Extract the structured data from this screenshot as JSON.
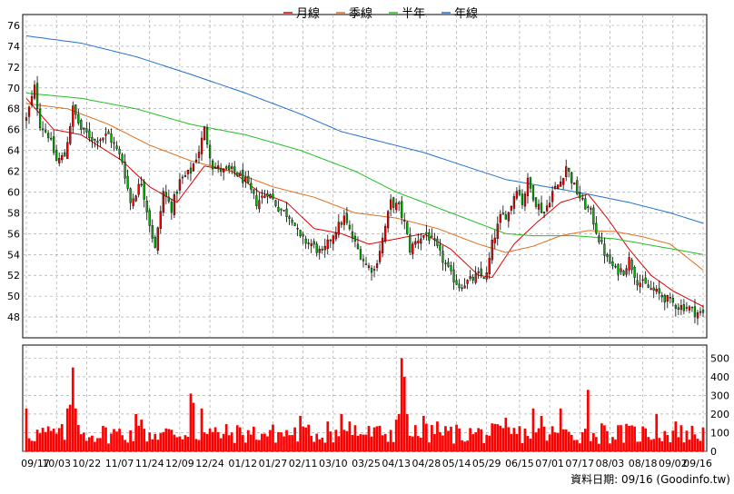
{
  "legend": [
    {
      "name": "月線",
      "color": "#e00000"
    },
    {
      "name": "季線",
      "color": "#e07020"
    },
    {
      "name": "半年",
      "color": "#20c020"
    },
    {
      "name": "年線",
      "color": "#2070d0"
    }
  ],
  "colors": {
    "up": "#ff0000",
    "down": "#00b000",
    "volume": "#ff0000",
    "grid": "#999999",
    "frame": "#000000"
  },
  "footer": "資料日期: 09/16  (Goodinfo.tw)",
  "chart_data": [
    {
      "type": "candlestick",
      "ylim": [
        46,
        76
      ],
      "yticks": [
        48,
        50,
        52,
        54,
        56,
        58,
        60,
        62,
        64,
        66,
        68,
        70,
        72,
        74,
        76
      ],
      "xticks": [
        "09/17",
        "10/03",
        "10/22",
        "11/07",
        "11/24",
        "12/09",
        "12/24",
        "01/12",
        "01/27",
        "02/11",
        "03/10",
        "03/25",
        "04/13",
        "04/28",
        "05/14",
        "05/29",
        "06/15",
        "07/01",
        "07/17",
        "08/03",
        "08/18",
        "09/02",
        "09/16"
      ],
      "grid": true,
      "n_sessions": 248,
      "close_anchors": [
        [
          0,
          67
        ],
        [
          3,
          70
        ],
        [
          5,
          66.5
        ],
        [
          8,
          65.5
        ],
        [
          11,
          63
        ],
        [
          14,
          63.5
        ],
        [
          17,
          68
        ],
        [
          20,
          66
        ],
        [
          25,
          65
        ],
        [
          30,
          65.5
        ],
        [
          35,
          63
        ],
        [
          38,
          59
        ],
        [
          42,
          61
        ],
        [
          45,
          57
        ],
        [
          47,
          54.5
        ],
        [
          50,
          60
        ],
        [
          53,
          58.5
        ],
        [
          56,
          61
        ],
        [
          60,
          62
        ],
        [
          63,
          64
        ],
        [
          65,
          66
        ],
        [
          68,
          62.5
        ],
        [
          72,
          62
        ],
        [
          76,
          62
        ],
        [
          80,
          61
        ],
        [
          84,
          59
        ],
        [
          88,
          60
        ],
        [
          92,
          58.5
        ],
        [
          97,
          57.5
        ],
        [
          100,
          55.5
        ],
        [
          104,
          55
        ],
        [
          108,
          54
        ],
        [
          112,
          56
        ],
        [
          116,
          57.5
        ],
        [
          120,
          55
        ],
        [
          124,
          53
        ],
        [
          127,
          52.5
        ],
        [
          130,
          55.5
        ],
        [
          133,
          59
        ],
        [
          136,
          58.5
        ],
        [
          138,
          57
        ],
        [
          140,
          54.5
        ],
        [
          143,
          55.5
        ],
        [
          146,
          56
        ],
        [
          149,
          55
        ],
        [
          152,
          53.5
        ],
        [
          155,
          52
        ],
        [
          158,
          51
        ],
        [
          162,
          51.5
        ],
        [
          165,
          52
        ],
        [
          168,
          52
        ],
        [
          170,
          55
        ],
        [
          173,
          57.5
        ],
        [
          176,
          58
        ],
        [
          179,
          60.5
        ],
        [
          181,
          59
        ],
        [
          183,
          61
        ],
        [
          186,
          59
        ],
        [
          189,
          58
        ],
        [
          192,
          60
        ],
        [
          195,
          61
        ],
        [
          197,
          62.5
        ],
        [
          200,
          60.5
        ],
        [
          203,
          59
        ],
        [
          206,
          58
        ],
        [
          209,
          55.5
        ],
        [
          212,
          53.5
        ],
        [
          215,
          52.5
        ],
        [
          218,
          52.5
        ],
        [
          220,
          53.5
        ],
        [
          223,
          51.5
        ],
        [
          226,
          51
        ],
        [
          229,
          50.5
        ],
        [
          232,
          50
        ],
        [
          235,
          49.5
        ],
        [
          238,
          49
        ],
        [
          241,
          49
        ],
        [
          244,
          48.5
        ],
        [
          247,
          48.3
        ]
      ],
      "moving_averages": [
        {
          "name": "月線",
          "points": [
            [
              0,
              69
            ],
            [
              10,
              66
            ],
            [
              20,
              65.5
            ],
            [
              35,
              63
            ],
            [
              45,
              60.5
            ],
            [
              55,
              59
            ],
            [
              65,
              62.5
            ],
            [
              75,
              62
            ],
            [
              85,
              60
            ],
            [
              95,
              59
            ],
            [
              105,
              56.5
            ],
            [
              115,
              56
            ],
            [
              125,
              55
            ],
            [
              135,
              55.5
            ],
            [
              145,
              56
            ],
            [
              155,
              54.5
            ],
            [
              165,
              52
            ],
            [
              170,
              51.8
            ],
            [
              178,
              55
            ],
            [
              186,
              57
            ],
            [
              195,
              59
            ],
            [
              205,
              59.8
            ],
            [
              212,
              57.5
            ],
            [
              220,
              54.5
            ],
            [
              228,
              52
            ],
            [
              236,
              50.5
            ],
            [
              247,
              49
            ]
          ]
        },
        {
          "name": "季線",
          "points": [
            [
              0,
              68.5
            ],
            [
              15,
              68
            ],
            [
              30,
              66.5
            ],
            [
              45,
              64.5
            ],
            [
              60,
              63
            ],
            [
              75,
              62
            ],
            [
              90,
              60.5
            ],
            [
              105,
              59.5
            ],
            [
              120,
              58
            ],
            [
              135,
              57.5
            ],
            [
              150,
              56.5
            ],
            [
              165,
              55
            ],
            [
              175,
              54.2
            ],
            [
              185,
              54.8
            ],
            [
              195,
              55.8
            ],
            [
              205,
              56.3
            ],
            [
              215,
              56.2
            ],
            [
              225,
              55.7
            ],
            [
              235,
              55
            ],
            [
              247,
              52.5
            ]
          ]
        },
        {
          "name": "半年",
          "points": [
            [
              0,
              69.5
            ],
            [
              20,
              69
            ],
            [
              40,
              68
            ],
            [
              60,
              66.5
            ],
            [
              80,
              65.5
            ],
            [
              100,
              64
            ],
            [
              120,
              62
            ],
            [
              135,
              60
            ],
            [
              150,
              58.5
            ],
            [
              165,
              57
            ],
            [
              175,
              56
            ],
            [
              185,
              55.8
            ],
            [
              200,
              55.8
            ],
            [
              215,
              55.5
            ],
            [
              230,
              54.8
            ],
            [
              247,
              54
            ]
          ]
        },
        {
          "name": "年線",
          "points": [
            [
              0,
              75
            ],
            [
              20,
              74.3
            ],
            [
              40,
              73
            ],
            [
              60,
              71.3
            ],
            [
              80,
              69.5
            ],
            [
              100,
              67.5
            ],
            [
              115,
              65.8
            ],
            [
              130,
              64.8
            ],
            [
              145,
              63.8
            ],
            [
              160,
              62.5
            ],
            [
              175,
              61.2
            ],
            [
              190,
              60.5
            ],
            [
              205,
              59.8
            ],
            [
              220,
              59
            ],
            [
              235,
              58
            ],
            [
              247,
              57
            ]
          ]
        }
      ]
    },
    {
      "type": "bar",
      "series_name": "volume",
      "ylim": [
        0,
        570
      ],
      "yticks": [
        0,
        100,
        200,
        300,
        400,
        500
      ],
      "peaks": [
        [
          0,
          230
        ],
        [
          15,
          230
        ],
        [
          16,
          250
        ],
        [
          17,
          450
        ],
        [
          18,
          230
        ],
        [
          40,
          200
        ],
        [
          42,
          170
        ],
        [
          60,
          310
        ],
        [
          61,
          260
        ],
        [
          64,
          230
        ],
        [
          100,
          190
        ],
        [
          110,
          160
        ],
        [
          115,
          200
        ],
        [
          118,
          160
        ],
        [
          120,
          140
        ],
        [
          135,
          170
        ],
        [
          136,
          200
        ],
        [
          137,
          500
        ],
        [
          138,
          400
        ],
        [
          139,
          200
        ],
        [
          145,
          190
        ],
        [
          150,
          160
        ],
        [
          175,
          180
        ],
        [
          185,
          230
        ],
        [
          188,
          190
        ],
        [
          195,
          230
        ],
        [
          205,
          330
        ],
        [
          210,
          150
        ],
        [
          230,
          200
        ],
        [
          237,
          160
        ]
      ]
    }
  ]
}
